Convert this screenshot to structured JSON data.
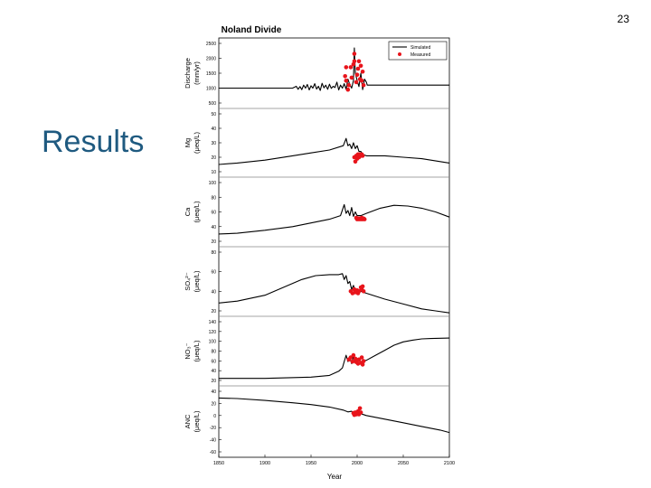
{
  "slide": {
    "number": "23",
    "title": "Results"
  },
  "chart_data": {
    "type": "line",
    "title": "Noland Divide",
    "xlabel": "Year",
    "xlim": [
      1850,
      2100
    ],
    "x_ticks": [
      "1850",
      "1900",
      "1950",
      "2000",
      "2050",
      "2100"
    ],
    "legend": {
      "placement": "top-right",
      "entries": [
        "Simulated",
        "Measured"
      ]
    },
    "colors": {
      "simulated": "#000000",
      "measured": "#e8141b"
    },
    "panels": [
      {
        "id": "discharge",
        "ylabel_1": "Discharge",
        "ylabel_2": "(mm/yr)",
        "ylim": [
          500,
          2500
        ],
        "y_ticks": [
          "2500",
          "2000",
          "1500",
          "1000",
          "500"
        ],
        "simulated": [
          [
            1850,
            1000
          ],
          [
            1930,
            1000
          ],
          [
            1934,
            1060
          ],
          [
            1936,
            960
          ],
          [
            1938,
            1050
          ],
          [
            1940,
            950
          ],
          [
            1942,
            1100
          ],
          [
            1944,
            1000
          ],
          [
            1946,
            1120
          ],
          [
            1948,
            940
          ],
          [
            1950,
            1080
          ],
          [
            1952,
            1000
          ],
          [
            1954,
            1150
          ],
          [
            1956,
            970
          ],
          [
            1958,
            1060
          ],
          [
            1960,
            920
          ],
          [
            1962,
            1160
          ],
          [
            1964,
            1010
          ],
          [
            1966,
            1100
          ],
          [
            1968,
            960
          ],
          [
            1970,
            1130
          ],
          [
            1972,
            990
          ],
          [
            1974,
            1060
          ],
          [
            1976,
            1020
          ],
          [
            1978,
            1200
          ],
          [
            1980,
            940
          ],
          [
            1982,
            1100
          ],
          [
            1984,
            1000
          ],
          [
            1986,
            1150
          ],
          [
            1988,
            960
          ],
          [
            1990,
            1300
          ],
          [
            1992,
            1120
          ],
          [
            1994,
            1000
          ],
          [
            1996,
            1250
          ],
          [
            1997,
            2350
          ],
          [
            1998,
            1500
          ],
          [
            2000,
            1250
          ],
          [
            2002,
            1050
          ],
          [
            2004,
            1500
          ],
          [
            2006,
            950
          ],
          [
            2008,
            1300
          ],
          [
            2010,
            1200
          ],
          [
            2011,
            1100
          ],
          [
            2100,
            1100
          ]
        ],
        "measured": [
          [
            1987,
            1400
          ],
          [
            1988,
            1700
          ],
          [
            1988,
            1250
          ],
          [
            1990,
            950
          ],
          [
            1991,
            1100
          ],
          [
            1993,
            1700
          ],
          [
            1994,
            1350
          ],
          [
            1996,
            1800
          ],
          [
            1997,
            2150
          ],
          [
            1997,
            1900
          ],
          [
            1999,
            1200
          ],
          [
            2000,
            1450
          ],
          [
            2001,
            1650
          ],
          [
            2002,
            1900
          ],
          [
            2003,
            1300
          ],
          [
            2004,
            1750
          ],
          [
            2005,
            1250
          ],
          [
            2006,
            1550
          ],
          [
            2007,
            1100
          ]
        ]
      },
      {
        "id": "mg",
        "ylabel_1": "Mg",
        "ylabel_2": "(μeq/L)",
        "ylim": [
          10,
          50
        ],
        "y_ticks": [
          "50",
          "40",
          "30",
          "20",
          "10"
        ],
        "simulated": [
          [
            1850,
            15
          ],
          [
            1870,
            16
          ],
          [
            1900,
            18
          ],
          [
            1930,
            21
          ],
          [
            1950,
            23
          ],
          [
            1970,
            25
          ],
          [
            1985,
            28
          ],
          [
            1988,
            33
          ],
          [
            1990,
            28
          ],
          [
            1992,
            29
          ],
          [
            1994,
            26
          ],
          [
            1996,
            30
          ],
          [
            1998,
            26
          ],
          [
            2000,
            28
          ],
          [
            2002,
            24
          ],
          [
            2004,
            24
          ],
          [
            2006,
            22
          ],
          [
            2010,
            21
          ],
          [
            2030,
            21
          ],
          [
            2050,
            20
          ],
          [
            2070,
            19
          ],
          [
            2100,
            16
          ]
        ],
        "measured": [
          [
            1997,
            20
          ],
          [
            1998,
            17
          ],
          [
            1999,
            21
          ],
          [
            2000,
            19
          ],
          [
            2001,
            22
          ],
          [
            2002,
            20
          ],
          [
            2003,
            22
          ],
          [
            2004,
            21
          ],
          [
            2005,
            22
          ],
          [
            2006,
            21
          ]
        ]
      },
      {
        "id": "ca",
        "ylabel_1": "Ca",
        "ylabel_2": "(μeq/L)",
        "ylim": [
          20,
          100
        ],
        "y_ticks": [
          "100",
          "80",
          "60",
          "40",
          "20"
        ],
        "simulated": [
          [
            1850,
            30
          ],
          [
            1870,
            31
          ],
          [
            1900,
            35
          ],
          [
            1930,
            40
          ],
          [
            1950,
            45
          ],
          [
            1970,
            50
          ],
          [
            1982,
            55
          ],
          [
            1986,
            70
          ],
          [
            1988,
            58
          ],
          [
            1990,
            62
          ],
          [
            1992,
            55
          ],
          [
            1994,
            66
          ],
          [
            1996,
            54
          ],
          [
            1998,
            60
          ],
          [
            2000,
            55
          ],
          [
            2004,
            55
          ],
          [
            2010,
            58
          ],
          [
            2025,
            65
          ],
          [
            2040,
            69
          ],
          [
            2055,
            68
          ],
          [
            2070,
            65
          ],
          [
            2085,
            60
          ],
          [
            2100,
            53
          ]
        ],
        "measured": [
          [
            1999,
            52
          ],
          [
            2000,
            50
          ],
          [
            2001,
            51
          ],
          [
            2002,
            50
          ],
          [
            2003,
            51
          ],
          [
            2004,
            50
          ],
          [
            2005,
            52
          ],
          [
            2006,
            50
          ],
          [
            2007,
            51
          ],
          [
            2008,
            50
          ]
        ]
      },
      {
        "id": "so4",
        "ylabel_1": "SO₄²⁻",
        "ylabel_2": "(μeq/L)",
        "ylim": [
          20,
          80
        ],
        "y_ticks": [
          "80",
          "60",
          "40",
          "20"
        ],
        "simulated": [
          [
            1850,
            28
          ],
          [
            1870,
            30
          ],
          [
            1900,
            36
          ],
          [
            1920,
            44
          ],
          [
            1940,
            52
          ],
          [
            1955,
            56
          ],
          [
            1970,
            57
          ],
          [
            1980,
            57
          ],
          [
            1984,
            58
          ],
          [
            1986,
            52
          ],
          [
            1988,
            56
          ],
          [
            1990,
            48
          ],
          [
            1992,
            50
          ],
          [
            1994,
            42
          ],
          [
            1996,
            46
          ],
          [
            1998,
            40
          ],
          [
            2000,
            42
          ],
          [
            2002,
            38
          ],
          [
            2004,
            40
          ],
          [
            2010,
            38
          ],
          [
            2030,
            32
          ],
          [
            2050,
            27
          ],
          [
            2070,
            22
          ],
          [
            2085,
            20
          ],
          [
            2100,
            18
          ]
        ],
        "measured": [
          [
            1993,
            40
          ],
          [
            1995,
            38
          ],
          [
            1997,
            42
          ],
          [
            1998,
            39
          ],
          [
            2000,
            41
          ],
          [
            2001,
            38
          ],
          [
            2002,
            40
          ],
          [
            2004,
            44
          ],
          [
            2005,
            42
          ],
          [
            2006,
            45
          ],
          [
            2007,
            40
          ]
        ]
      },
      {
        "id": "no3",
        "ylabel_1": "NO₃⁻",
        "ylabel_2": "(μeq/L)",
        "ylim": [
          0,
          140
        ],
        "y_ticks": [
          "140",
          "120",
          "100",
          "80",
          "60",
          "40",
          "20"
        ],
        "simulated": [
          [
            1850,
            5
          ],
          [
            1900,
            5
          ],
          [
            1950,
            8
          ],
          [
            1970,
            12
          ],
          [
            1980,
            22
          ],
          [
            1984,
            30
          ],
          [
            1986,
            45
          ],
          [
            1988,
            60
          ],
          [
            1990,
            45
          ],
          [
            1992,
            55
          ],
          [
            1994,
            40
          ],
          [
            1996,
            58
          ],
          [
            1998,
            42
          ],
          [
            2000,
            50
          ],
          [
            2004,
            45
          ],
          [
            2010,
            48
          ],
          [
            2020,
            60
          ],
          [
            2030,
            72
          ],
          [
            2040,
            84
          ],
          [
            2050,
            92
          ],
          [
            2060,
            96
          ],
          [
            2070,
            99
          ],
          [
            2080,
            100
          ],
          [
            2100,
            101
          ]
        ],
        "measured": [
          [
            1991,
            50
          ],
          [
            1993,
            55
          ],
          [
            1995,
            45
          ],
          [
            1996,
            60
          ],
          [
            1998,
            52
          ],
          [
            1999,
            44
          ],
          [
            2000,
            48
          ],
          [
            2001,
            40
          ],
          [
            2002,
            50
          ],
          [
            2004,
            42
          ],
          [
            2005,
            55
          ],
          [
            2006,
            38
          ],
          [
            2007,
            46
          ]
        ]
      },
      {
        "id": "anc",
        "ylabel_1": "ANC",
        "ylabel_2": "(μeq/L)",
        "ylim": [
          -60,
          40
        ],
        "y_ticks": [
          "40",
          "20",
          "0",
          "-20",
          "-40",
          "-60"
        ],
        "simulated": [
          [
            1850,
            29
          ],
          [
            1870,
            28
          ],
          [
            1900,
            25
          ],
          [
            1930,
            21
          ],
          [
            1950,
            18
          ],
          [
            1970,
            14
          ],
          [
            1985,
            9
          ],
          [
            1990,
            6
          ],
          [
            1994,
            7
          ],
          [
            1996,
            3
          ],
          [
            1998,
            6
          ],
          [
            2000,
            2
          ],
          [
            2004,
            3
          ],
          [
            2010,
            0
          ],
          [
            2030,
            -6
          ],
          [
            2050,
            -12
          ],
          [
            2070,
            -18
          ],
          [
            2090,
            -24
          ],
          [
            2100,
            -28
          ]
        ],
        "measured": [
          [
            1996,
            4
          ],
          [
            1997,
            1
          ],
          [
            1998,
            5
          ],
          [
            1999,
            2
          ],
          [
            2000,
            4
          ],
          [
            2001,
            7
          ],
          [
            2002,
            2
          ],
          [
            2003,
            12
          ],
          [
            2004,
            5
          ]
        ]
      }
    ]
  }
}
